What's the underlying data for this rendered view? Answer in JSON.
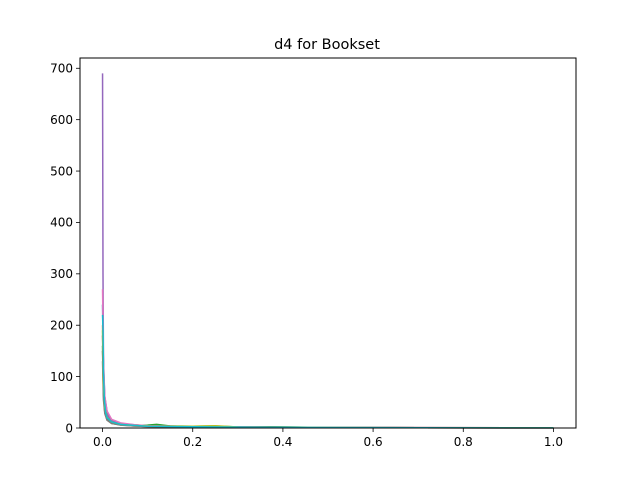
{
  "chart_data": {
    "type": "line",
    "title": "d4 for Bookset",
    "xlabel": "",
    "ylabel": "",
    "xlim": [
      -0.05,
      1.05
    ],
    "ylim": [
      0,
      720
    ],
    "xticks": [
      0.0,
      0.2,
      0.4,
      0.6,
      0.8,
      1.0
    ],
    "xtick_labels": [
      "0.0",
      "0.2",
      "0.4",
      "0.6",
      "0.8",
      "1.0"
    ],
    "yticks": [
      0,
      100,
      200,
      300,
      400,
      500,
      600,
      700
    ],
    "ytick_labels": [
      "0",
      "100",
      "200",
      "300",
      "400",
      "500",
      "600",
      "700"
    ],
    "grid": false,
    "legend": "none",
    "series": [
      {
        "color": "#1f77b4",
        "x": [
          0,
          0.002,
          0.005,
          0.01,
          0.02,
          0.04,
          0.07,
          0.1,
          0.2,
          0.3,
          0.5,
          0.7,
          1.0
        ],
        "y": [
          240,
          120,
          60,
          32,
          16,
          9,
          6,
          4.5,
          3,
          2,
          1.2,
          0.8,
          0.5
        ]
      },
      {
        "color": "#ff7f0e",
        "x": [
          0,
          0.002,
          0.005,
          0.01,
          0.02,
          0.04,
          0.07,
          0.1,
          0.2,
          0.3,
          0.5,
          0.7,
          1.0
        ],
        "y": [
          200,
          95,
          45,
          24,
          13,
          8,
          5.5,
          4,
          3.2,
          2,
          1,
          0.7,
          0.5
        ]
      },
      {
        "color": "#2ca02c",
        "x": [
          0,
          0.002,
          0.005,
          0.01,
          0.02,
          0.04,
          0.07,
          0.1,
          0.12,
          0.15,
          0.2,
          0.25,
          0.3,
          0.37,
          0.5,
          0.7,
          1.0
        ],
        "y": [
          160,
          70,
          30,
          16,
          9,
          6,
          5,
          5.5,
          7,
          4,
          3.5,
          4,
          2,
          2.5,
          1,
          0.6,
          0.4
        ]
      },
      {
        "color": "#d62728",
        "x": [
          0,
          0.002,
          0.005,
          0.01,
          0.02,
          0.04,
          0.07,
          0.1,
          0.2,
          0.3,
          0.5,
          0.7,
          1.0
        ],
        "y": [
          180,
          80,
          38,
          20,
          11,
          7,
          5,
          3.5,
          2.5,
          1.5,
          0.8,
          0.5,
          0.3
        ]
      },
      {
        "color": "#9467bd",
        "x": [
          0,
          0.001,
          0.002,
          0.004,
          0.007,
          0.01,
          0.02,
          0.04,
          0.07,
          0.1,
          0.2,
          0.3,
          0.5,
          0.7,
          1.0
        ],
        "y": [
          690,
          300,
          140,
          70,
          40,
          26,
          15,
          9,
          6,
          4,
          3,
          2,
          1,
          0.6,
          0.4
        ]
      },
      {
        "color": "#8c564b",
        "x": [
          0,
          0.002,
          0.005,
          0.01,
          0.02,
          0.04,
          0.07,
          0.1,
          0.2,
          0.3,
          0.5,
          0.7,
          1.0
        ],
        "y": [
          150,
          65,
          32,
          18,
          10,
          6,
          4,
          3,
          2,
          1.3,
          0.8,
          0.5,
          0.3
        ]
      },
      {
        "color": "#e377c2",
        "x": [
          0,
          0.002,
          0.005,
          0.01,
          0.02,
          0.04,
          0.07,
          0.1,
          0.2,
          0.3,
          0.5,
          0.7,
          1.0
        ],
        "y": [
          270,
          130,
          62,
          33,
          17,
          10,
          6.5,
          4.5,
          3,
          2,
          1.1,
          0.7,
          0.4
        ]
      },
      {
        "color": "#7f7f7f",
        "x": [
          0,
          0.002,
          0.005,
          0.01,
          0.02,
          0.04,
          0.07,
          0.1,
          0.2,
          0.3,
          0.5,
          0.7,
          1.0
        ],
        "y": [
          130,
          55,
          28,
          15,
          9,
          5.5,
          4,
          3,
          2,
          1.2,
          0.7,
          0.4,
          0.3
        ]
      },
      {
        "color": "#bcbd22",
        "x": [
          0,
          0.002,
          0.005,
          0.01,
          0.02,
          0.04,
          0.07,
          0.1,
          0.2,
          0.25,
          0.3,
          0.5,
          0.7,
          1.0
        ],
        "y": [
          190,
          85,
          40,
          21,
          12,
          7,
          5,
          4,
          3.5,
          4.5,
          2,
          1,
          0.6,
          0.4
        ]
      },
      {
        "color": "#17becf",
        "x": [
          0,
          0.001,
          0.002,
          0.004,
          0.007,
          0.01,
          0.02,
          0.04,
          0.07,
          0.1,
          0.2,
          0.3,
          0.5,
          0.7,
          1.0
        ],
        "y": [
          220,
          190,
          110,
          55,
          30,
          20,
          12,
          7,
          5,
          3.5,
          2.5,
          1.6,
          0.9,
          0.5,
          0.3
        ]
      }
    ]
  }
}
